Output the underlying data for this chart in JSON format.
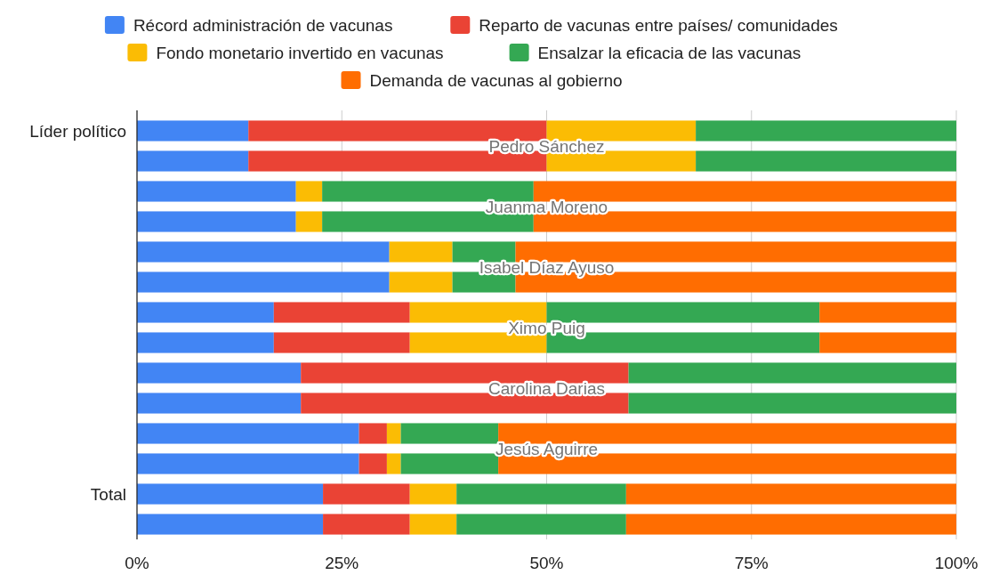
{
  "chart_data": {
    "type": "bar",
    "orientation": "horizontal",
    "stacked": true,
    "categories": [
      "Líder político",
      null,
      null,
      null,
      null,
      null,
      null,
      null,
      null,
      null,
      null,
      null,
      "Total",
      null
    ],
    "series": [
      {
        "name": "Récord administración de vacunas",
        "color": "#4285f4",
        "values": [
          13.6,
          13.6,
          19.4,
          19.4,
          30.8,
          30.8,
          16.7,
          16.7,
          20,
          20,
          27.1,
          27.1,
          22.7,
          22.7
        ]
      },
      {
        "name": "Reparto de vacunas entre países/ comunidades",
        "color": "#ea4335",
        "values": [
          36.4,
          36.4,
          0,
          0,
          0,
          0,
          16.6,
          16.6,
          40,
          40,
          3.4,
          3.4,
          10.6,
          10.6
        ]
      },
      {
        "name": "Fondo monetario invertido en vacunas",
        "color": "#fbbc04",
        "values": [
          18.2,
          18.2,
          3.2,
          3.2,
          7.7,
          7.7,
          16.7,
          16.7,
          0,
          0,
          1.7,
          1.7,
          5.7,
          5.7
        ]
      },
      {
        "name": "Ensalzar la eficacia de las vacunas",
        "color": "#34a853",
        "values": [
          31.8,
          31.8,
          25.8,
          25.8,
          7.7,
          7.7,
          33.3,
          33.3,
          40,
          40,
          11.9,
          11.9,
          20.7,
          20.7
        ]
      },
      {
        "name": "Demanda de vacunas al gobierno",
        "color": "#ff6d01",
        "values": [
          0,
          0,
          51.6,
          51.6,
          53.8,
          53.8,
          16.7,
          16.7,
          0,
          0,
          55.9,
          55.9,
          40.3,
          40.3
        ]
      }
    ],
    "annotations": [
      "Pedro Sánchez",
      "Juanma Moreno",
      "Isabel Díaz Ayuso",
      "Ximo Puig",
      "Carolina Darias",
      "Jesús Aguirre"
    ],
    "xlim": [
      0,
      100
    ],
    "xticks": [
      {
        "value": 0,
        "label": "0%"
      },
      {
        "value": 25,
        "label": "25%"
      },
      {
        "value": 50,
        "label": "50%"
      },
      {
        "value": 75,
        "label": "75%"
      },
      {
        "value": 100,
        "label": "100%"
      }
    ],
    "grid": "x",
    "legend": "top"
  }
}
